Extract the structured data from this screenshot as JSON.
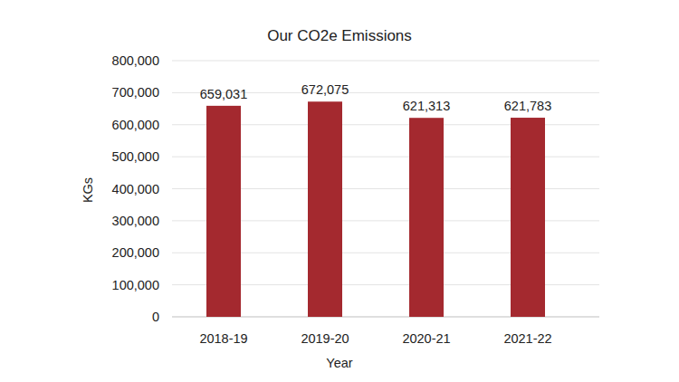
{
  "chart_data": {
    "type": "bar",
    "title": "Our CO2e Emissions",
    "x_label": "Year",
    "y_label": "KGs",
    "categories": [
      "2018-19",
      "2019-20",
      "2020-21",
      "2021-22"
    ],
    "values": [
      659031,
      672075,
      621313,
      621783
    ],
    "value_labels": [
      "659,031",
      "672,075",
      "621,313",
      "621,783"
    ],
    "color": "#a4292f",
    "ylim": [
      0,
      800000
    ],
    "yticks": [
      0,
      {
        "value": 100000,
        "label": "100,000"
      },
      {
        "value": 200000,
        "label": "200,000"
      },
      {
        "value": 300000,
        "label": "300,000"
      },
      {
        "value": 400000,
        "label": "400,000"
      },
      {
        "value": 500000,
        "label": "500,000"
      },
      {
        "value": 600000,
        "label": "600,000"
      },
      {
        "value": 700000,
        "label": "700,000"
      },
      {
        "value": 800000,
        "label": "800,000"
      }
    ],
    "grid": true,
    "data_labels": true
  }
}
